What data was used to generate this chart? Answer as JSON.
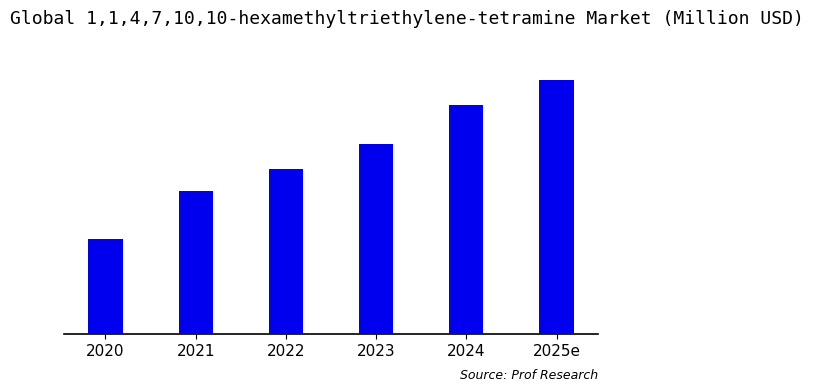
{
  "title": "Global 1,1,4,7,10,10-hexamethyltriethylene-tetramine Market (Million USD)",
  "categories": [
    "2020",
    "2021",
    "2022",
    "2023",
    "2024",
    "2025e"
  ],
  "values": [
    3.0,
    4.5,
    5.2,
    6.0,
    7.2,
    8.0
  ],
  "bar_color": "#0000EE",
  "background_color": "#ffffff",
  "source_text": "Source: Prof Research",
  "title_fontsize": 13,
  "tick_fontsize": 11,
  "source_fontsize": 9,
  "ylim": [
    0,
    9.2
  ],
  "bar_width": 0.38
}
